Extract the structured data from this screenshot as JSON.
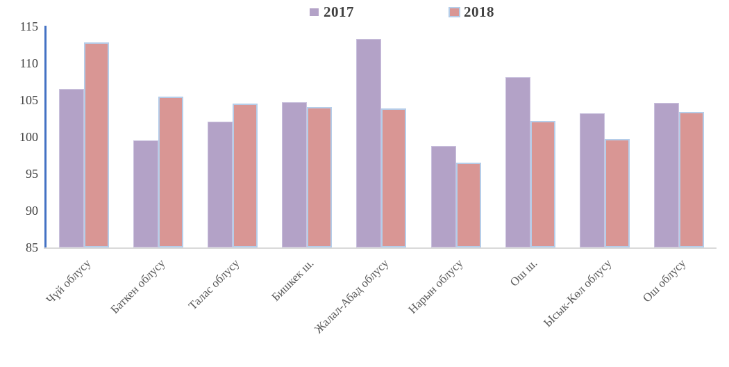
{
  "chart_data": {
    "type": "bar",
    "title": "",
    "xlabel": "",
    "ylabel": "",
    "categories": [
      "Чүй облусу",
      "Баткен облусу",
      "Талас облусу",
      "Бишкек ш.",
      "Жалал-Абад облусу",
      "Нарын облусу",
      "Ош ш.",
      "Ысык-Көл облусу",
      "Ош облусу"
    ],
    "series": [
      {
        "name": "2017",
        "color": "#b3a2c7",
        "values": [
          106.5,
          99.5,
          102.1,
          104.7,
          113.3,
          98.8,
          108.1,
          103.2,
          104.6
        ]
      },
      {
        "name": "2018",
        "color": "#d99694",
        "values": [
          112.8,
          105.5,
          104.5,
          104.1,
          103.9,
          96.5,
          102.2,
          99.7,
          103.4
        ]
      }
    ],
    "ylim": [
      85,
      115
    ],
    "yticks": [
      115,
      110,
      105,
      100,
      95,
      90,
      85
    ],
    "grid": false,
    "legend_position": "top",
    "colors": {
      "y_axis_line": "#4472c4",
      "x_axis_line": "#d9d9d9",
      "bar_border": "#b5cde9",
      "tick_label_text": "#404040",
      "category_label_text": "#595959",
      "legend_text": "#404040"
    }
  }
}
